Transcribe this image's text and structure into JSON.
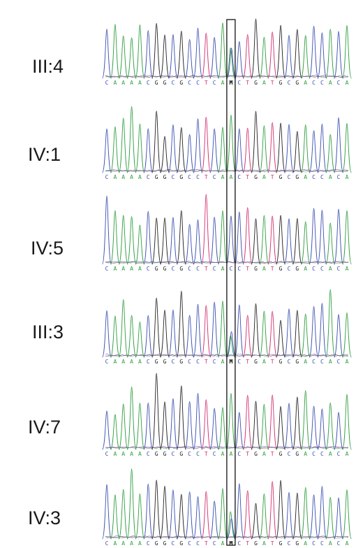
{
  "figure": {
    "type": "sanger-chromatogram-panel",
    "sequence_letters": [
      "C",
      "A",
      "A",
      "A",
      "A",
      "C",
      "G",
      "G",
      "C",
      "G",
      "C",
      "C",
      "T",
      "C",
      "A",
      "?",
      "C",
      "T",
      "G",
      "A",
      "T",
      "G",
      "C",
      "G",
      "A",
      "C",
      "C",
      "A",
      "C",
      "A"
    ],
    "highlighted_position": 16,
    "base_colors": {
      "A": "#2e9e3f",
      "C": "#3a4fb0",
      "G": "#222222",
      "T": "#d12f6f"
    },
    "highlight_box_color": "#111111",
    "samples": [
      {
        "label": "III:4",
        "call": "M"
      },
      {
        "label": "IV:1",
        "call": "A"
      },
      {
        "label": "IV:5",
        "call": "C"
      },
      {
        "label": "III:3",
        "call": "M"
      },
      {
        "label": "IV:7",
        "call": "A"
      },
      {
        "label": "IV:3",
        "call": "M"
      }
    ]
  }
}
